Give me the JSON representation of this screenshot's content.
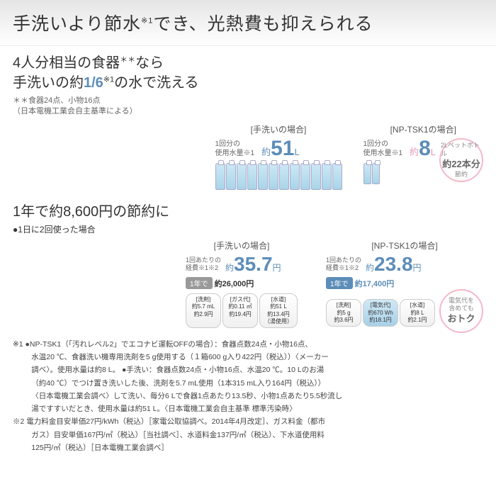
{
  "header": {
    "title": "手洗いより節水",
    "subscript": "※1",
    "title2": "でき、光熱費も抑えられる"
  },
  "sec1": {
    "title_a": "4人分相当の食器",
    "title_aa": "＊＊",
    "title_b": "なら",
    "title_c": "手洗いの約",
    "title_d": "1/6",
    "title_dd": "※1",
    "title_e": "の水で洗える",
    "note": "＊＊食器24点、小物16点\n（日本電機工業会自主基準による）",
    "left": {
      "label": "[手洗いの場合]",
      "text": "1回分の\n使用水量※1",
      "pre": "約",
      "num": "51",
      "unit": "L",
      "bottles": 12
    },
    "right": {
      "label": "[NP-TSK1の場合]",
      "text": "1回分の\n使用水量※1",
      "pre": "約",
      "num": "8",
      "unit": "L",
      "bottles": 2,
      "badge_a": "2Lペットボトル",
      "badge_b": "約22本分",
      "badge_c": "節約"
    }
  },
  "sec2": {
    "title": "1年で約8,600円の節約に",
    "sub": "●1日に2回使った場合",
    "left": {
      "label": "[手洗いの場合]",
      "text": "1回あたりの\n経費※1※2",
      "pre": "約",
      "num": "35.7",
      "unit": "円",
      "year_tag": "1年で",
      "year_val": "約26,000円",
      "cyls": [
        [
          "[洗剤]",
          "約5.7 mL",
          "約2.9円"
        ],
        [
          "[ガス代]",
          "約0.11 ㎥",
          "約19.4円"
        ],
        [
          "[水道]",
          "約51 L",
          "約13.4円",
          "（湯使用）"
        ]
      ]
    },
    "right": {
      "label": "[NP-TSK1の場合]",
      "text": "1回あたりの\n経費※1※2",
      "pre": "約",
      "num": "23.8",
      "unit": "円",
      "year_tag": "1年で",
      "year_val": "約17,400円",
      "cyls": [
        [
          "[洗剤]",
          "約5 g",
          "約3.6円"
        ],
        [
          "[電気代]",
          "約670 Wh",
          "約18.1円"
        ],
        [
          "[水道]",
          "約8 L",
          "約2.1円"
        ]
      ],
      "badge_a": "電気代を",
      "badge_b": "含めても",
      "badge_c": "おトク"
    }
  },
  "foot": {
    "l1": "※1 ●NP-TSK1（「汚れレベル2」でエコナビ運転OFFの場合）：食器点数24点・小物16点、",
    "l2": "水温20 ℃、食器洗い機専用洗剤を5 g使用する（１箱600 g入り422円（税込））〈メーカー",
    "l3": "調べ〉。使用水量は約8 L。 ●手洗い：食器点数24点・小物16点、水温20 ℃。10 Lのお湯",
    "l4": "（約40 ℃）でつけ置き洗いした後、洗剤を5.7 mL使用（1本315 mL入り164円（税込））",
    "l5": "〈日本電機工業会調べ〉して洗い、毎分6 Lで食器1点あたり13.5秒、小物1点あたり5.5秒流し",
    "l6": "湯ですすいだとき、使用水量は約51 L。〈日本電機工業会自主基準 標準汚染時〉",
    "l7": "※2 電力料金目安単価27円/kWh（税込）［家電公取協調べ。2014年4月改定］、ガス料金（都市",
    "l8": "ガス）目安単価167円/㎡（税込）［当社調べ］、水道料金137円/㎡（税込）、下水道使用料",
    "l9": "125円/㎡（税込）［日本電機工業会調べ］"
  }
}
